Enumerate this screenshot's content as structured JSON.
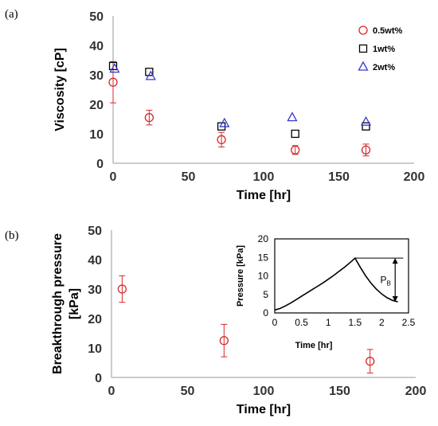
{
  "chart_data": [
    {
      "panel_label": "(a)",
      "type": "scatter",
      "xlabel": "Time [hr]",
      "ylabel": "Viscosity [cP]",
      "xlim": [
        0,
        200
      ],
      "ylim": [
        0,
        50
      ],
      "xticks": [
        "0",
        "50",
        "100",
        "150",
        "200"
      ],
      "yticks": [
        "0",
        "10",
        "20",
        "30",
        "40",
        "50"
      ],
      "legend_position": "top-right",
      "series": [
        {
          "name": "0.5wt%",
          "marker": "circle",
          "color": "#d62728",
          "points": [
            {
              "x": 0,
              "y": 27.5,
              "err": 7
            },
            {
              "x": 24,
              "y": 15.5,
              "err": 2.5
            },
            {
              "x": 72,
              "y": 8,
              "err": 2.5
            },
            {
              "x": 121,
              "y": 4.5,
              "err": 1.5
            },
            {
              "x": 168,
              "y": 4.5,
              "err": 2
            }
          ]
        },
        {
          "name": "1wt%",
          "marker": "square",
          "color": "#000000",
          "points": [
            {
              "x": 0,
              "y": 33
            },
            {
              "x": 24,
              "y": 31
            },
            {
              "x": 72,
              "y": 12.5
            },
            {
              "x": 121,
              "y": 10
            },
            {
              "x": 168,
              "y": 12.5
            }
          ]
        },
        {
          "name": "2wt%",
          "marker": "triangle",
          "color": "#3a3acc",
          "points": [
            {
              "x": 1,
              "y": 32
            },
            {
              "x": 25,
              "y": 29.5
            },
            {
              "x": 74,
              "y": 13.5
            },
            {
              "x": 119,
              "y": 15.5
            },
            {
              "x": 168,
              "y": 14
            }
          ]
        }
      ]
    },
    {
      "panel_label": "(b)",
      "type": "scatter",
      "xlabel": "Time [hr]",
      "ylabel": [
        "Breakthrough pressure",
        "[kPa]"
      ],
      "xlim": [
        0,
        200
      ],
      "ylim": [
        0,
        50
      ],
      "xticks": [
        "0",
        "50",
        "100",
        "150",
        "200"
      ],
      "yticks": [
        "0",
        "10",
        "20",
        "30",
        "40",
        "50"
      ],
      "series": [
        {
          "marker": "circle",
          "color": "#d62728",
          "points": [
            {
              "x": 7,
              "y": 30,
              "err": 4.5
            },
            {
              "x": 74,
              "y": 12.5,
              "err": 5.5
            },
            {
              "x": 170,
              "y": 5.5,
              "err": 4
            }
          ]
        }
      ],
      "inset": {
        "type": "line",
        "xlabel": "Time [hr]",
        "ylabel": "Pressure [kPa]",
        "xlim": [
          0,
          2.5
        ],
        "ylim": [
          0,
          20
        ],
        "xticks": [
          "0",
          "0.5",
          "1",
          "1.5",
          "2",
          "2.5"
        ],
        "yticks": [
          "0",
          "5",
          "10",
          "15",
          "20"
        ],
        "annotation": {
          "label": "P",
          "subscript": "B"
        },
        "curve": [
          [
            0,
            0.8
          ],
          [
            0.1,
            1.2
          ],
          [
            0.2,
            1.9
          ],
          [
            0.3,
            2.7
          ],
          [
            0.4,
            3.6
          ],
          [
            0.5,
            4.5
          ],
          [
            0.6,
            5.4
          ],
          [
            0.7,
            6.3
          ],
          [
            0.8,
            7.2
          ],
          [
            0.9,
            8.1
          ],
          [
            1.0,
            9.1
          ],
          [
            1.1,
            10.1
          ],
          [
            1.2,
            11.2
          ],
          [
            1.3,
            12.3
          ],
          [
            1.4,
            13.5
          ],
          [
            1.5,
            14.8
          ],
          [
            1.6,
            12.3
          ],
          [
            1.7,
            10.0
          ],
          [
            1.8,
            8.0
          ],
          [
            1.9,
            6.4
          ],
          [
            2.0,
            5.1
          ],
          [
            2.1,
            4.1
          ],
          [
            2.2,
            3.4
          ],
          [
            2.3,
            3.0
          ]
        ]
      }
    }
  ]
}
